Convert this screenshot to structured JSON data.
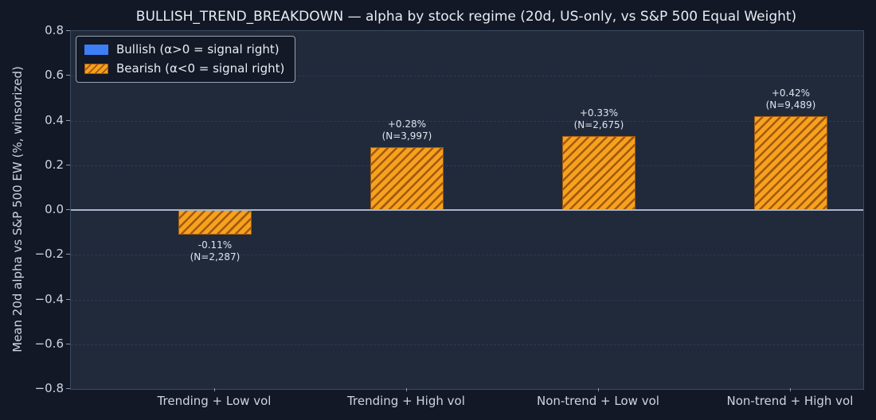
{
  "chart_data": {
    "type": "bar",
    "title": "BULLISH_TREND_BREAKDOWN — alpha by stock regime (20d, US-only, vs S&P 500 Equal Weight)",
    "xlabel": "",
    "ylabel": "Mean 20d alpha vs S&P 500 EW (%, winsorized)",
    "categories": [
      "Trending + Low vol",
      "Trending + High vol",
      "Non-trend + Low vol",
      "Non-trend + High vol"
    ],
    "values": [
      -0.11,
      0.28,
      0.33,
      0.42
    ],
    "bar_labels": [
      "-0.11%",
      "+0.28%",
      "+0.33%",
      "+0.42%"
    ],
    "bar_sublabels": [
      "(N=2,287)",
      "(N=3,997)",
      "(N=2,675)",
      "(N=9,489)"
    ],
    "ylim": [
      -0.8,
      0.8
    ],
    "ytick_step": 0.2,
    "ytick_labels": [
      "0.8",
      "0.6",
      "0.4",
      "0.2",
      "0.0",
      "−0.2",
      "−0.4",
      "−0.6",
      "−0.8"
    ],
    "grid": "horizontal-dashed",
    "zero_line": true,
    "legend_position": "upper-left",
    "legend": [
      {
        "label": "Bullish (α>0 = signal right)",
        "color": "#3d7ef5",
        "hatched": false
      },
      {
        "label": "Bearish (α<0 = signal right)",
        "color": "#f7a11d",
        "hatched": true
      }
    ],
    "colors": {
      "figure_bg": "#121826",
      "axes_bg": "#212a3b",
      "spine": "#3c4a5f",
      "grid": "#2e3a52",
      "zero_line": "#a9b6cb",
      "bar_fill": "#f7a11d",
      "bar_hatch": "#a05a10",
      "title_text": "#e8ecf3",
      "tick_text": "#cdd5e2"
    }
  }
}
